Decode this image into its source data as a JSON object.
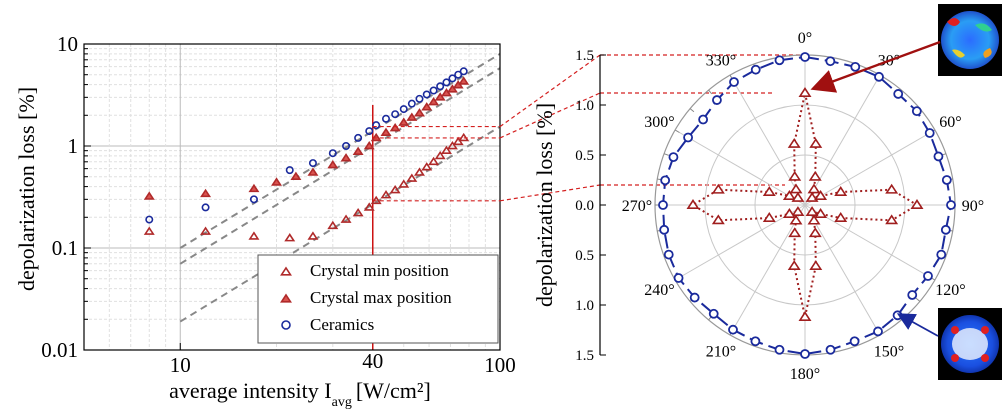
{
  "chart_data": [
    {
      "type": "scatter",
      "x_scale": "log",
      "y_scale": "log",
      "xlabel_main": "average intensity I",
      "xlabel_sub": "avg",
      "xlabel_unit": "[W/cm²]",
      "ylabel": "depolarization loss [%]",
      "xlim": [
        5,
        100
      ],
      "ylim": [
        0.01,
        10
      ],
      "x_ticks": [
        10,
        100
      ],
      "x_tick_labels": [
        "10",
        "100"
      ],
      "y_ticks": [
        0.01,
        0.1,
        1,
        10
      ],
      "y_tick_labels": [
        "0.01",
        "0.1",
        "1",
        "10"
      ],
      "grid": true,
      "legend_position": "bottom-right",
      "marker_line": {
        "x": 40,
        "label": "40",
        "color": "#cc1111"
      },
      "colors": {
        "crystal": "#b02a2a",
        "crystal_fill": "#d9534f",
        "ceramics": "#1a2a9c",
        "fit": "#888888"
      },
      "series": [
        {
          "name": "Crystal min position",
          "marker": "triangle-open",
          "x": [
            8,
            12,
            17,
            22,
            26,
            30,
            33,
            36,
            39,
            41,
            44,
            47,
            50,
            53,
            56,
            59,
            62,
            65,
            68,
            71,
            74,
            77
          ],
          "y": [
            0.145,
            0.145,
            0.13,
            0.125,
            0.13,
            0.165,
            0.19,
            0.22,
            0.25,
            0.29,
            0.33,
            0.37,
            0.42,
            0.48,
            0.55,
            0.62,
            0.7,
            0.8,
            0.9,
            1.0,
            1.1,
            1.2
          ]
        },
        {
          "name": "Crystal max position",
          "marker": "triangle-filled",
          "x": [
            8,
            12,
            17,
            20,
            23,
            26,
            30,
            33,
            36,
            39,
            41,
            44,
            47,
            50,
            53,
            56,
            59,
            62,
            65,
            68,
            71,
            74,
            77
          ],
          "y": [
            0.32,
            0.34,
            0.38,
            0.44,
            0.5,
            0.55,
            0.65,
            0.76,
            0.88,
            1.0,
            1.2,
            1.35,
            1.5,
            1.7,
            1.9,
            2.1,
            2.4,
            2.7,
            3.0,
            3.3,
            3.6,
            3.95,
            4.3
          ]
        },
        {
          "name": "Ceramics",
          "marker": "circle-open",
          "x": [
            8,
            12,
            17,
            22,
            26,
            30,
            33,
            36,
            39,
            41,
            44,
            47,
            50,
            53,
            56,
            59,
            62,
            65,
            68,
            71,
            74,
            77
          ],
          "y": [
            0.19,
            0.25,
            0.3,
            0.58,
            0.68,
            0.85,
            1.0,
            1.2,
            1.4,
            1.6,
            1.85,
            2.05,
            2.3,
            2.6,
            2.9,
            3.2,
            3.5,
            3.85,
            4.2,
            4.6,
            5.0,
            5.4
          ]
        }
      ],
      "fit_lines": [
        {
          "x": [
            10,
            100
          ],
          "y": [
            0.1,
            8.0
          ]
        },
        {
          "x": [
            10,
            100
          ],
          "y": [
            0.07,
            5.8
          ]
        },
        {
          "x": [
            10,
            100
          ],
          "y": [
            0.019,
            1.55
          ]
        }
      ]
    },
    {
      "type": "polar",
      "ylabel": "depolarization loss [%]",
      "r_max": 1.5,
      "r_ticks_upper": [
        "1.5",
        "1.0",
        "0.5",
        "0.0"
      ],
      "r_ticks_lower": [
        "0.5",
        "1.0",
        "1.5"
      ],
      "angle_labels": [
        "0°",
        "30°",
        "60°",
        "90°",
        "120°",
        "150°",
        "180°",
        "210°",
        "240°",
        "270°",
        "300°",
        "330°"
      ],
      "angle_label_values": [
        0,
        30,
        60,
        90,
        120,
        150,
        180,
        210,
        240,
        270,
        300,
        330
      ],
      "series": [
        {
          "name": "Ceramics",
          "marker": "circle-open",
          "angles": [
            0,
            10,
            20,
            30,
            40,
            50,
            60,
            70,
            80,
            90,
            100,
            110,
            120,
            130,
            140,
            150,
            160,
            170,
            180,
            190,
            200,
            210,
            220,
            230,
            240,
            250,
            260,
            270,
            280,
            290,
            300,
            310,
            320,
            330,
            340,
            350
          ],
          "r": [
            1.48,
            1.46,
            1.47,
            1.48,
            1.45,
            1.46,
            1.44,
            1.42,
            1.44,
            1.46,
            1.43,
            1.45,
            1.42,
            1.4,
            1.44,
            1.46,
            1.45,
            1.47,
            1.49,
            1.47,
            1.45,
            1.44,
            1.42,
            1.44,
            1.46,
            1.45,
            1.43,
            1.42,
            1.42,
            1.4,
            1.35,
            1.33,
            1.37,
            1.42,
            1.44,
            1.47
          ]
        },
        {
          "name": "Crystal",
          "marker": "triangle-open",
          "angles": [
            0,
            10,
            20,
            30,
            45,
            60,
            70,
            80,
            90,
            100,
            110,
            120,
            135,
            150,
            160,
            170,
            180,
            190,
            200,
            210,
            225,
            240,
            250,
            260,
            270,
            280,
            290,
            300,
            315,
            330,
            340,
            350
          ],
          "r": [
            1.12,
            0.62,
            0.3,
            0.18,
            0.1,
            0.18,
            0.38,
            0.88,
            1.12,
            0.88,
            0.38,
            0.18,
            0.1,
            0.18,
            0.3,
            0.62,
            1.12,
            0.62,
            0.3,
            0.18,
            0.1,
            0.18,
            0.38,
            0.88,
            1.12,
            0.88,
            0.38,
            0.18,
            0.1,
            0.18,
            0.3,
            0.62
          ]
        }
      ],
      "colors": {
        "ceramics": "#1a2a9c",
        "crystal": "#a01e1e",
        "grid": "#c8c8c8"
      }
    }
  ]
}
